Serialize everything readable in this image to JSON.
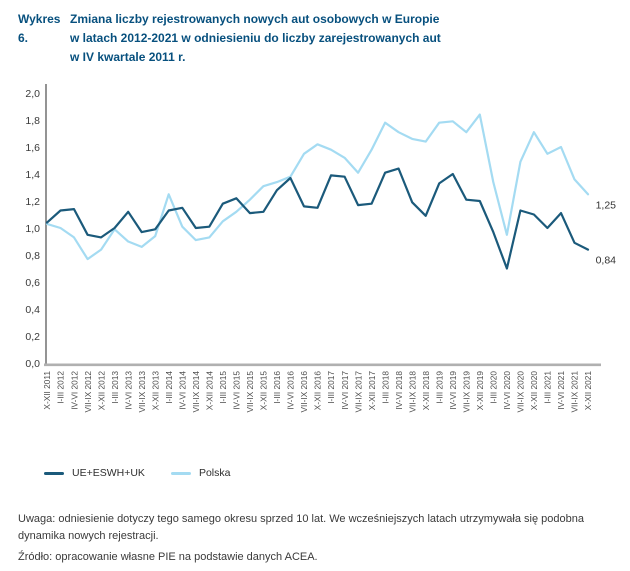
{
  "header": {
    "label": "Wykres 6.",
    "title_lines": [
      "Zmiana liczby rejestrowanych nowych aut osobowych w Europie",
      "w latach 2012-2021 w odniesieniu do liczby zarejestrowanych aut",
      "w IV kwartale 2011 r."
    ]
  },
  "chart_data": {
    "type": "line",
    "title": "Zmiana liczby rejestrowanych nowych aut osobowych w Europie w latach 2012-2021 w odniesieniu do liczby zarejestrowanych aut w IV kwartale 2011 r.",
    "xlabel": "",
    "ylabel": "",
    "ylim": [
      0,
      2
    ],
    "ytick_step": 0.2,
    "ytick_labels": [
      "0,0",
      "0,2",
      "0,4",
      "0,6",
      "0,8",
      "1,0",
      "1,2",
      "1,4",
      "1,6",
      "1,8",
      "2,0"
    ],
    "grid": false,
    "legend_position": "bottom",
    "categories": [
      "X-XII 2011",
      "I-III 2012",
      "IV-VI 2012",
      "VII-IX 2012",
      "X-XII 2012",
      "I-III 2013",
      "IV-VI 2013",
      "VII-IX 2013",
      "X-XII 2013",
      "I-III 2014",
      "IV-VI 2014",
      "VII-IX 2014",
      "X-XII 2014",
      "I-III 2015",
      "IV-VI 2015",
      "VII-IX 2015",
      "X-XII 2015",
      "I-III 2016",
      "IV-VI 2016",
      "VII-IX 2016",
      "X-XII 2016",
      "I-III 2017",
      "IV-VI 2017",
      "VII-IX 2017",
      "X-XII 2017",
      "I-III 2018",
      "IV-VI 2018",
      "VII-IX 2018",
      "X-XII 2018",
      "I-III 2019",
      "IV-VI 2019",
      "VII-IX 2019",
      "X-XII 2019",
      "I-III 2020",
      "IV-VI 2020",
      "VII-IX 2020",
      "X-XII 2020",
      "I-III 2021",
      "IV-VI 2021",
      "VII-IX 2021",
      "X-XII 2021"
    ],
    "series": [
      {
        "name": "UE+ESWH+UK",
        "color": "#1b5a7b",
        "end_label": "0,84",
        "values": [
          1.04,
          1.13,
          1.14,
          0.95,
          0.93,
          1.0,
          1.12,
          0.97,
          0.99,
          1.13,
          1.15,
          1.0,
          1.01,
          1.18,
          1.22,
          1.11,
          1.12,
          1.28,
          1.37,
          1.16,
          1.15,
          1.39,
          1.38,
          1.17,
          1.18,
          1.41,
          1.44,
          1.19,
          1.09,
          1.33,
          1.4,
          1.21,
          1.2,
          0.97,
          0.7,
          1.13,
          1.1,
          1.0,
          1.11,
          0.89,
          0.84
        ]
      },
      {
        "name": "Polska",
        "color": "#a4dbf2",
        "end_label": "1,25",
        "values": [
          1.03,
          1.0,
          0.93,
          0.77,
          0.84,
          0.99,
          0.9,
          0.86,
          0.94,
          1.25,
          1.01,
          0.91,
          0.93,
          1.05,
          1.12,
          1.21,
          1.31,
          1.34,
          1.38,
          1.55,
          1.62,
          1.58,
          1.52,
          1.41,
          1.58,
          1.78,
          1.71,
          1.66,
          1.64,
          1.78,
          1.79,
          1.71,
          1.84,
          1.34,
          0.95,
          1.49,
          1.71,
          1.55,
          1.6,
          1.36,
          1.25
        ]
      }
    ]
  },
  "colors": {
    "title_navy": "#07507e",
    "axis_text": "#3a3a3a",
    "x_axis_line": "#b0b0b0",
    "y_axis_line": "#4c4c4c"
  },
  "footer": {
    "note": "Uwaga: odniesienie dotyczy tego samego okresu sprzed 10 lat. We wcześniejszych latach utrzymywała się podobna dynamika nowych rejestracji.",
    "source": "Źródło: opracowanie własne PIE na podstawie danych ACEA."
  }
}
